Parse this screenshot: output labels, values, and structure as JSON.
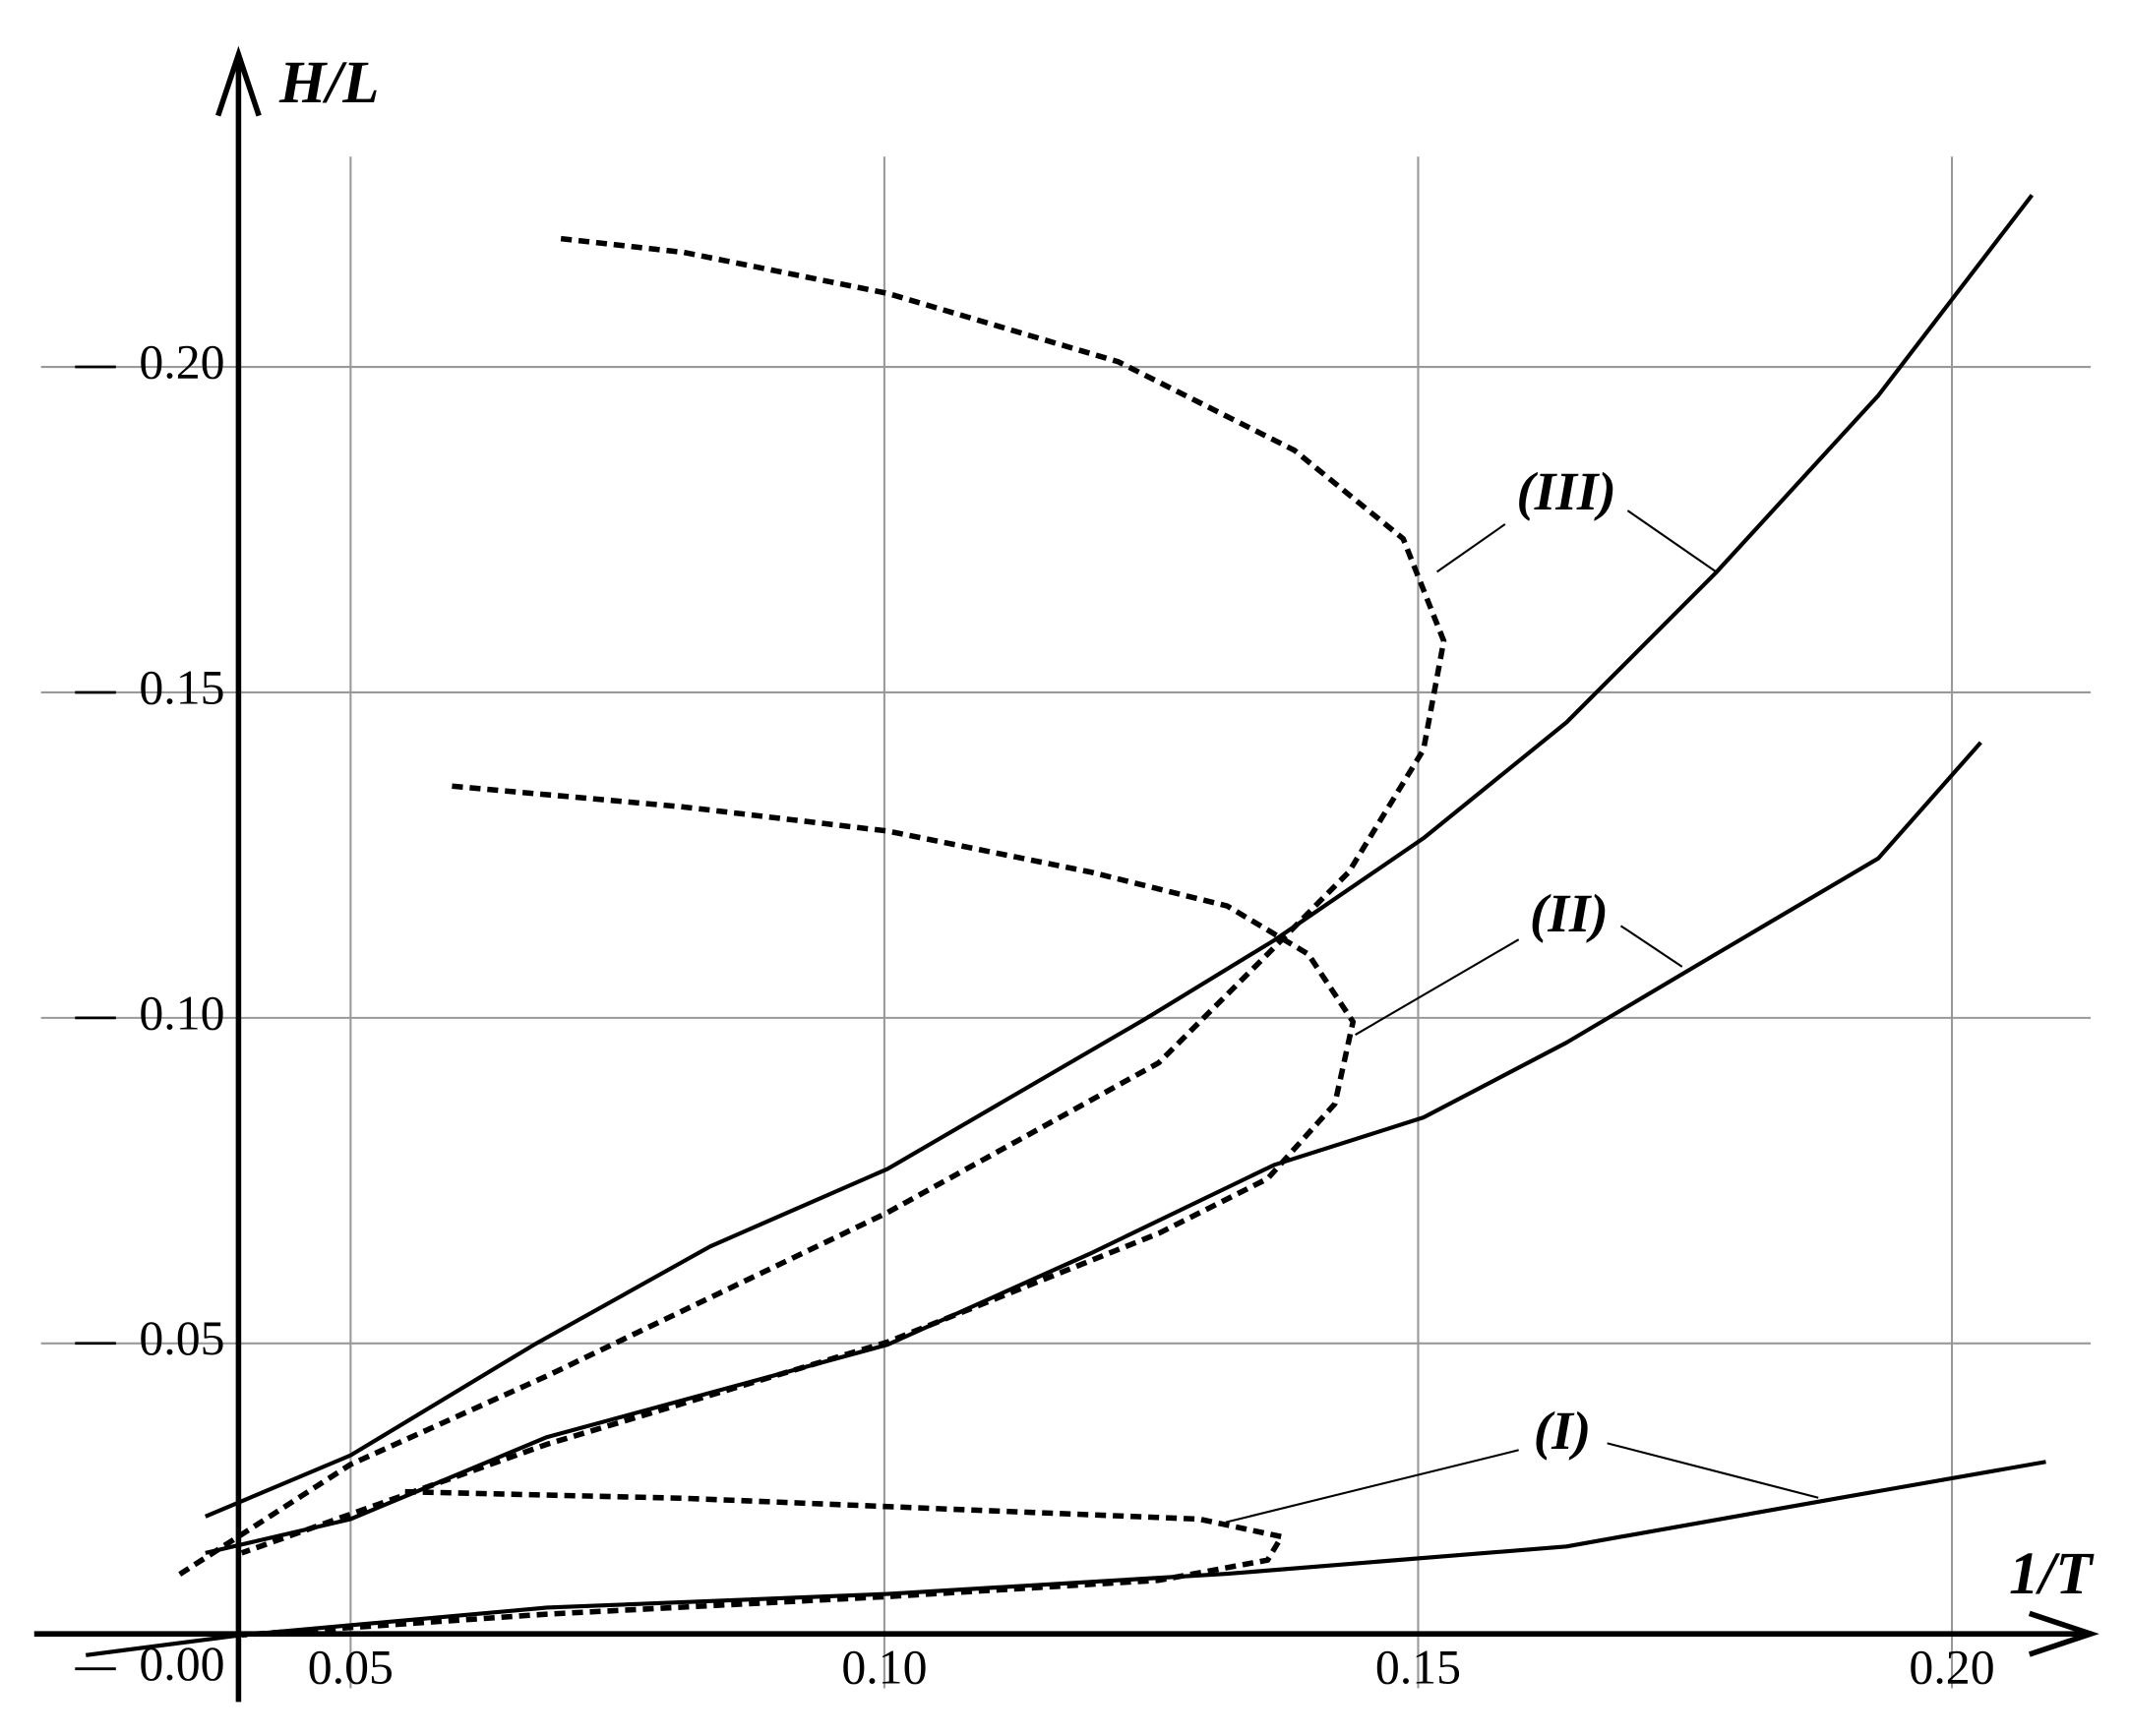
{
  "chart_data": {
    "type": "line",
    "x_label": "1/T",
    "y_label": "H/L",
    "xlim": [
      0.021,
      0.213
    ],
    "ylim": [
      -0.003,
      0.248
    ],
    "xticks": [
      {
        "value": 0.05,
        "label": "0.05"
      },
      {
        "value": 0.1,
        "label": "0.10"
      },
      {
        "value": 0.15,
        "label": "0.15"
      },
      {
        "value": 0.2,
        "label": "0.20"
      }
    ],
    "yticks": [
      {
        "value": 0,
        "label": "0.00"
      },
      {
        "value": 0.05,
        "label": "0.05"
      },
      {
        "value": 0.1,
        "label": "0.10"
      },
      {
        "value": 0.15,
        "label": "0.15"
      },
      {
        "value": 0.2,
        "label": "0.20"
      }
    ],
    "grid": true,
    "annotations": [
      "(III)",
      "(II)",
      "(I)"
    ],
    "series": [
      {
        "color": "#000000",
        "style": "solid",
        "x": [
          0.0364,
          0.05,
          0.0672,
          0.0837,
          0.1003,
          0.1244,
          0.1365,
          0.1505,
          0.1639,
          0.1779,
          0.1931,
          0.2075
        ],
        "values": [
          0.0234,
          0.0328,
          0.0498,
          0.0649,
          0.0768,
          0.0998,
          0.1119,
          0.1276,
          0.1454,
          0.1684,
          0.1956,
          0.2264
        ]
      },
      {
        "color": "#000000",
        "style": "solid",
        "x": [
          0.0364,
          0.05,
          0.0684,
          0.1003,
          0.1193,
          0.1365,
          0.1505,
          0.1639,
          0.1779,
          0.1931,
          0.2027
        ],
        "values": [
          0.0178,
          0.023,
          0.0356,
          0.0498,
          0.0638,
          0.0774,
          0.0847,
          0.0962,
          0.1098,
          0.1245,
          0.1423
        ]
      },
      {
        "color": "#000000",
        "style": "solid",
        "x": [
          0.0252,
          0.0398,
          0.0684,
          0.1003,
          0.1321,
          0.1639,
          0.1893,
          0.2088
        ],
        "values": [
          0.0021,
          0.0052,
          0.0094,
          0.0115,
          0.0146,
          0.0188,
          0.0262,
          0.0318
        ]
      },
      {
        "color": "#000000",
        "style": "dashed",
        "x": [
          0.0697,
          0.0812,
          0.1003,
          0.1219,
          0.1384,
          0.1486,
          0.1524,
          0.1505,
          0.1435,
          0.1359,
          0.1257,
          0.1003,
          0.0684,
          0.05,
          0.0335
        ],
        "values": [
          0.2197,
          0.2176,
          0.2113,
          0.2008,
          0.1872,
          0.1736,
          0.1579,
          0.1412,
          0.1224,
          0.1098,
          0.0931,
          0.0701,
          0.045,
          0.0314,
          0.014
        ]
      },
      {
        "color": "#000000",
        "style": "dashed",
        "x": [
          0.0595,
          0.0812,
          0.1003,
          0.1193,
          0.1321,
          0.1397,
          0.1439,
          0.1422,
          0.1359,
          0.1257,
          0.1003,
          0.0684,
          0.0398
        ],
        "values": [
          0.1356,
          0.1324,
          0.1287,
          0.1224,
          0.1172,
          0.1098,
          0.0994,
          0.0868,
          0.0753,
          0.0669,
          0.0502,
          0.0345,
          0.0178
        ]
      },
      {
        "color": "#000000",
        "style": "dashed",
        "x": [
          0.0551,
          0.0812,
          0.1066,
          0.1295,
          0.1372,
          0.1359,
          0.1257,
          0.1003,
          0.0684,
          0.0398
        ],
        "values": [
          0.0272,
          0.0262,
          0.0245,
          0.023,
          0.0203,
          0.0167,
          0.0136,
          0.0111,
          0.0084,
          0.0052
        ]
      }
    ]
  }
}
